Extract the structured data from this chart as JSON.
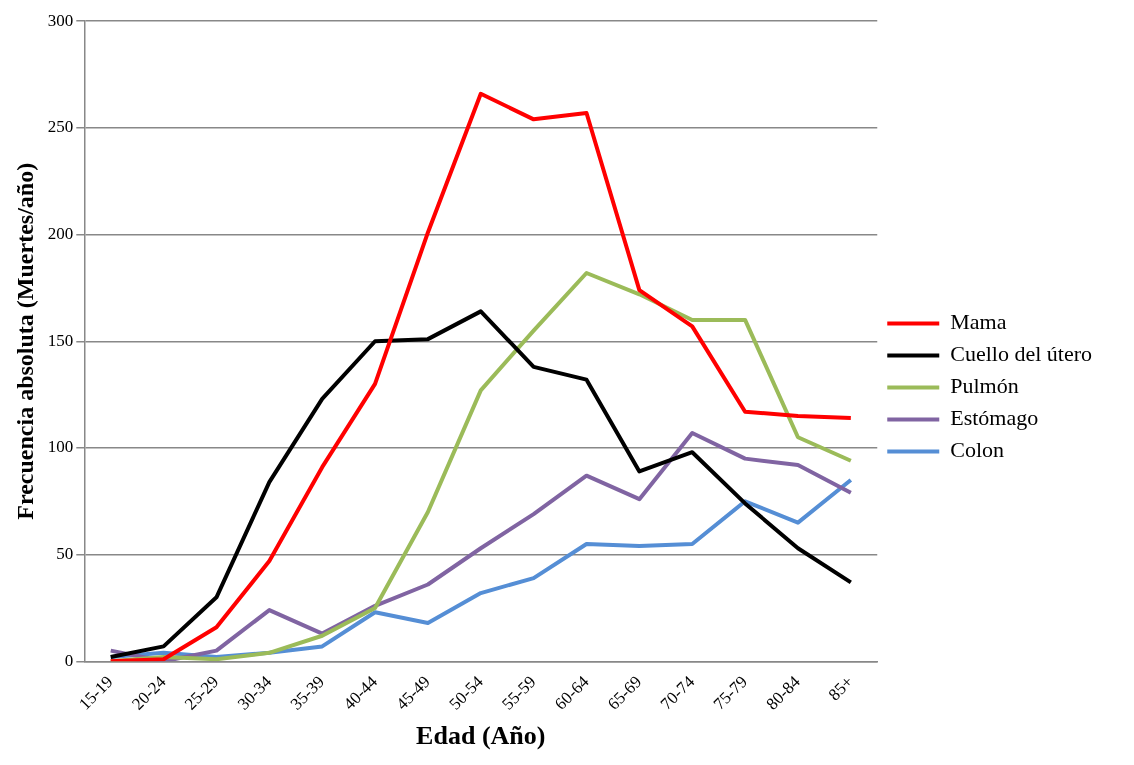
{
  "chart_data": {
    "type": "line",
    "xlabel": "Edad (Año)",
    "ylabel": "Frecuencia absoluta (Muertes/año)",
    "categories": [
      "15-19",
      "20-24",
      "25-29",
      "30-34",
      "35-39",
      "40-44",
      "45-49",
      "50-54",
      "55-59",
      "60-64",
      "65-69",
      "70-74",
      "75-79",
      "80-84",
      "85+"
    ],
    "series": [
      {
        "name": "Mama",
        "color": "#ff0000",
        "values": [
          0,
          1,
          16,
          47,
          91,
          130,
          201,
          266,
          254,
          257,
          174,
          157,
          117,
          115,
          114
        ]
      },
      {
        "name": "Cuello del útero",
        "color": "#000000",
        "values": [
          2,
          7,
          30,
          84,
          123,
          150,
          151,
          164,
          138,
          132,
          89,
          98,
          74,
          53,
          37
        ]
      },
      {
        "name": "Pulmón",
        "color": "#9bbb59",
        "values": [
          0,
          2,
          1,
          4,
          12,
          25,
          70,
          127,
          155,
          182,
          172,
          160,
          160,
          105,
          94
        ]
      },
      {
        "name": "Estómago",
        "color": "#8064a2",
        "values": [
          5,
          0,
          5,
          24,
          13,
          26,
          36,
          53,
          69,
          87,
          76,
          107,
          95,
          92,
          79
        ]
      },
      {
        "name": "Colon",
        "color": "#558ed5",
        "values": [
          2,
          4,
          2,
          4,
          7,
          23,
          18,
          32,
          39,
          55,
          54,
          55,
          75,
          65,
          85
        ]
      }
    ],
    "ylim": [
      0,
      300
    ],
    "yticks": [
      0,
      50,
      100,
      150,
      200,
      250,
      300
    ],
    "grid": "y",
    "legend": "right",
    "marker": "none",
    "line_style": "solid"
  }
}
